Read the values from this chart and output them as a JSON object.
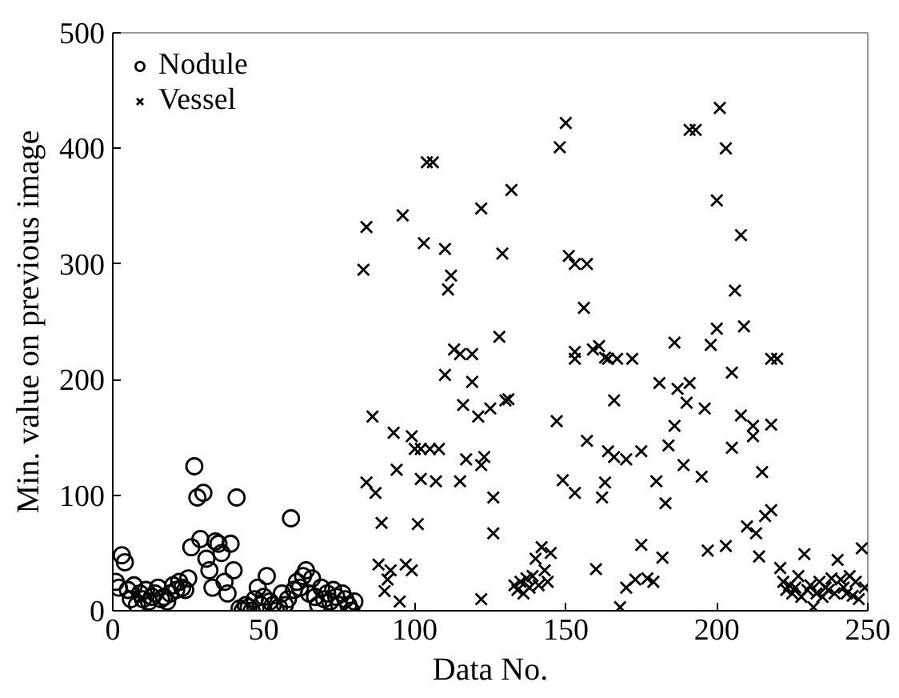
{
  "chart_data": {
    "type": "scatter",
    "xlabel": "Data No.",
    "ylabel": "Min. value on previous image",
    "xlim": [
      0,
      250
    ],
    "ylim": [
      0,
      500
    ],
    "xticks": [
      0,
      50,
      100,
      150,
      200,
      250
    ],
    "yticks": [
      0,
      100,
      200,
      300,
      400,
      500
    ],
    "grid": false,
    "legend": "top left",
    "series": [
      {
        "name": "Nodule",
        "color": "#000000",
        "marker": "circle",
        "x": [
          1,
          2,
          3,
          4,
          5,
          6,
          7,
          8,
          9,
          10,
          11,
          12,
          13,
          14,
          15,
          16,
          17,
          18,
          19,
          20,
          21,
          22,
          23,
          24,
          25,
          26,
          27,
          28,
          29,
          30,
          31,
          32,
          33,
          34,
          35,
          36,
          37,
          38,
          39,
          40,
          41,
          42,
          43,
          44,
          45,
          46,
          47,
          48,
          49,
          50,
          51,
          52,
          53,
          54,
          55,
          56,
          57,
          58,
          59,
          60,
          61,
          62,
          63,
          64,
          65,
          66,
          67,
          68,
          69,
          70,
          71,
          72,
          73,
          74,
          75,
          76,
          77,
          78,
          79,
          80
        ],
        "values": [
          25,
          20,
          48,
          42,
          18,
          10,
          22,
          5,
          15,
          10,
          18,
          8,
          12,
          15,
          20,
          10,
          12,
          8,
          15,
          22,
          18,
          25,
          20,
          18,
          28,
          55,
          125,
          98,
          62,
          102,
          45,
          35,
          20,
          60,
          58,
          50,
          25,
          15,
          58,
          35,
          98,
          2,
          0,
          5,
          3,
          0,
          10,
          20,
          5,
          12,
          30,
          8,
          5,
          0,
          3,
          15,
          5,
          10,
          80,
          18,
          25,
          20,
          30,
          35,
          15,
          28,
          12,
          5,
          20,
          10,
          15,
          8,
          18,
          12,
          5,
          15,
          10,
          5,
          0,
          8
        ]
      },
      {
        "name": "Vessel",
        "color": "#000000",
        "marker": "cross",
        "x": [
          83,
          84,
          84,
          86,
          87,
          88,
          89,
          90,
          91,
          92,
          93,
          94,
          95,
          96,
          97,
          99,
          99,
          100,
          101,
          102,
          102,
          103,
          104,
          105,
          106,
          107,
          108,
          110,
          110,
          111,
          112,
          113,
          115,
          115,
          116,
          117,
          119,
          119,
          121,
          122,
          122,
          122,
          123,
          125,
          126,
          126,
          128,
          129,
          130,
          131,
          132,
          133,
          134,
          135,
          136,
          137,
          138,
          139,
          140,
          141,
          142,
          143,
          144,
          145,
          147,
          148,
          149,
          150,
          151,
          153,
          153,
          153,
          153,
          156,
          157,
          157,
          159,
          160,
          161,
          162,
          163,
          163,
          164,
          164,
          166,
          166,
          167,
          168,
          170,
          170,
          172,
          173,
          175,
          175,
          177,
          179,
          180,
          181,
          182,
          183,
          184,
          186,
          186,
          187,
          189,
          190,
          191,
          191,
          193,
          195,
          196,
          197,
          198,
          200,
          200,
          201,
          203,
          203,
          205,
          205,
          206,
          208,
          208,
          209,
          210,
          212,
          212,
          213,
          214,
          215,
          216,
          218,
          218,
          218,
          220,
          221,
          222,
          223,
          224,
          225,
          226,
          227,
          228,
          229,
          230,
          231,
          232,
          233,
          234,
          235,
          236,
          237,
          238,
          239,
          240,
          241,
          242,
          243,
          244,
          245,
          246,
          247,
          248,
          249
        ],
        "values": [
          295,
          332,
          111,
          168,
          102,
          40,
          76,
          17,
          27,
          35,
          154,
          122,
          8,
          342,
          40,
          151,
          35,
          140,
          75,
          114,
          140,
          318,
          388,
          140,
          388,
          112,
          140,
          313,
          204,
          278,
          290,
          226,
          222,
          112,
          178,
          131,
          222,
          198,
          168,
          126,
          10,
          348,
          133,
          175,
          98,
          67,
          237,
          309,
          182,
          183,
          364,
          22,
          18,
          25,
          15,
          28,
          20,
          30,
          45,
          22,
          55,
          35,
          25,
          50,
          164,
          401,
          113,
          422,
          307,
          300,
          224,
          218,
          102,
          262,
          300,
          147,
          226,
          36,
          229,
          98,
          219,
          111,
          218,
          138,
          182,
          133,
          218,
          3,
          20,
          131,
          218,
          27,
          138,
          57,
          28,
          25,
          112,
          197,
          46,
          93,
          143,
          160,
          232,
          192,
          126,
          180,
          416,
          197,
          416,
          116,
          175,
          52,
          230,
          355,
          244,
          435,
          400,
          56,
          206,
          141,
          277,
          169,
          325,
          246,
          73,
          160,
          151,
          67,
          47,
          120,
          82,
          161,
          218,
          87,
          218,
          37,
          25,
          18,
          22,
          15,
          20,
          30,
          12,
          49,
          18,
          22,
          3,
          15,
          25,
          12,
          20,
          18,
          28,
          15,
          44,
          27,
          20,
          15,
          30,
          13,
          25,
          10,
          54,
          20
        ]
      }
    ]
  }
}
